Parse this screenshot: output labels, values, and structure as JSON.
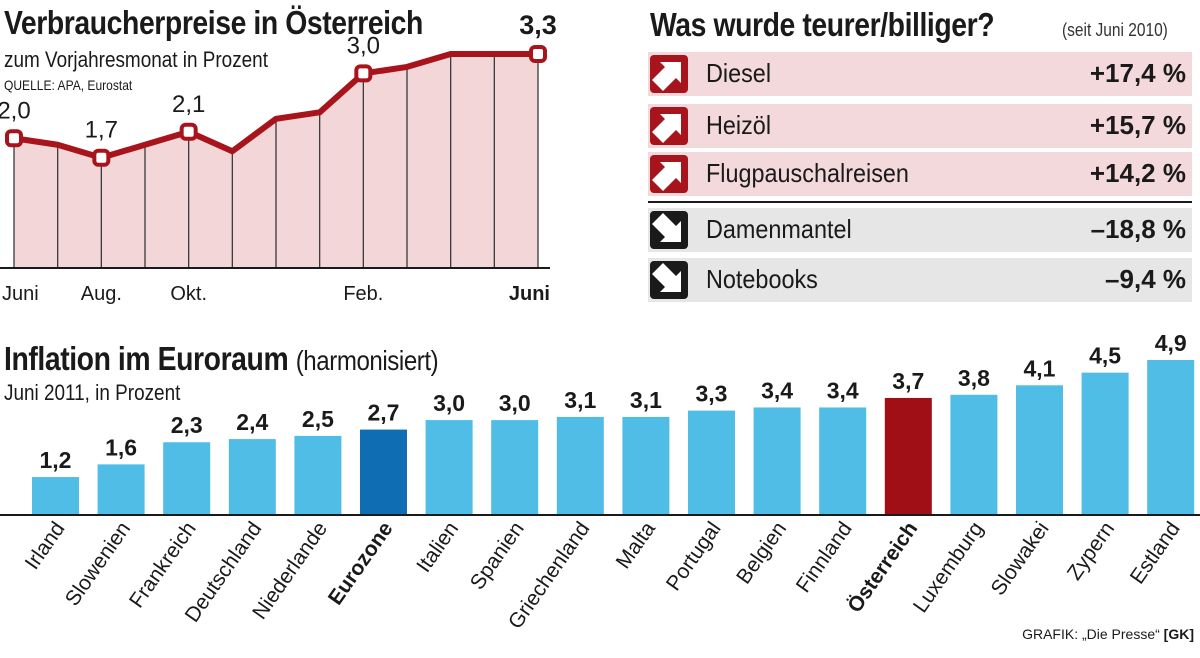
{
  "colors": {
    "line": "#a8141c",
    "area": "#f2d6d8",
    "bar": "#4fbde6",
    "bar_eurozone": "#0e6db3",
    "bar_austria": "#a00e16",
    "up_bg": "#f3d9db",
    "down_bg": "#e6e6e6",
    "up_icon": "#a8141c",
    "down_icon": "#1a1a1a"
  },
  "chart_data": [
    {
      "type": "area",
      "title": "Verbraucherpreise in Österreich",
      "subtitle": "zum Vorjahresmonat in Prozent",
      "source": "QUELLE: APA, Eurostat",
      "ylim": [
        0,
        3.7
      ],
      "values": [
        2.0,
        1.9,
        1.7,
        1.9,
        2.1,
        1.8,
        2.3,
        2.4,
        3.0,
        3.1,
        3.3,
        3.3,
        3.3
      ],
      "labeled_points": [
        {
          "index": 0,
          "label": "2,0",
          "bold": false
        },
        {
          "index": 2,
          "label": "1,7",
          "bold": false
        },
        {
          "index": 4,
          "label": "2,1",
          "bold": false
        },
        {
          "index": 8,
          "label": "3,0",
          "bold": false
        },
        {
          "index": 12,
          "label": "3,3",
          "bold": true
        }
      ],
      "x_ticks": [
        {
          "index": 0,
          "label": "Juni",
          "bold": false
        },
        {
          "index": 2,
          "label": "Aug.",
          "bold": false
        },
        {
          "index": 4,
          "label": "Okt.",
          "bold": false
        },
        {
          "index": 8,
          "label": "Feb.",
          "bold": false
        },
        {
          "index": 12,
          "label": "Juni",
          "bold": true
        }
      ]
    },
    {
      "type": "table",
      "title": "Was wurde teurer/billiger?",
      "note": "(seit Juni 2010)",
      "rows": [
        {
          "label": "Diesel",
          "value": "+17,4 %",
          "direction": "up"
        },
        {
          "label": "Heizöl",
          "value": "+15,7 %",
          "direction": "up"
        },
        {
          "label": "Flugpauschalreisen",
          "value": "+14,2 %",
          "direction": "up"
        },
        {
          "label": "Damenmantel",
          "value": "–18,8 %",
          "direction": "down"
        },
        {
          "label": "Notebooks",
          "value": "–9,4 %",
          "direction": "down"
        }
      ]
    },
    {
      "type": "bar",
      "title": "Inflation im Euroraum",
      "title_suffix": "(harmonisiert)",
      "subtitle": "Juni 2011, in Prozent",
      "ylim": [
        0,
        4.9
      ],
      "categories": [
        "Irland",
        "Slowenien",
        "Frankreich",
        "Deutschland",
        "Niederlande",
        "Eurozone",
        "Italien",
        "Spanien",
        "Griechenland",
        "Malta",
        "Portugal",
        "Belgien",
        "Finnland",
        "Österreich",
        "Luxemburg",
        "Slowakei",
        "Zypern",
        "Estland"
      ],
      "values": [
        1.2,
        1.6,
        2.3,
        2.4,
        2.5,
        2.7,
        3.0,
        3.0,
        3.1,
        3.1,
        3.3,
        3.4,
        3.4,
        3.7,
        3.8,
        4.1,
        4.5,
        4.9
      ],
      "value_labels": [
        "1,2",
        "1,6",
        "2,3",
        "2,4",
        "2,5",
        "2,7",
        "3,0",
        "3,0",
        "3,1",
        "3,1",
        "3,3",
        "3,4",
        "3,4",
        "3,7",
        "3,8",
        "4,1",
        "4,5",
        "4,9"
      ],
      "highlight": {
        "Eurozone": "eurozone",
        "Österreich": "austria"
      }
    }
  ],
  "credit": {
    "text": "GRAFIK: „Die Presse“",
    "tag": "[GK]"
  }
}
